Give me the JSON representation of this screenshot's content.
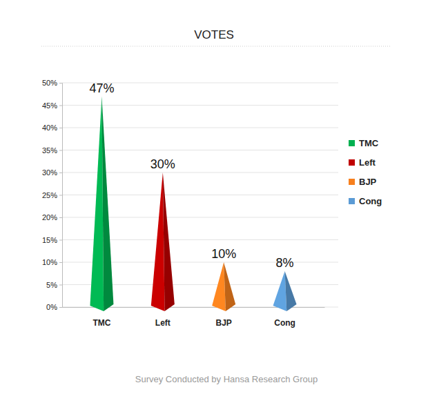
{
  "chart_data": {
    "type": "bar",
    "title": "VOTES",
    "categories": [
      "TMC",
      "Left",
      "BJP",
      "Cong"
    ],
    "values": [
      47,
      30,
      10,
      8
    ],
    "value_labels": [
      "47%",
      "30%",
      "10%",
      "8%"
    ],
    "colors": [
      "#00b050",
      "#c00000",
      "#f7801e",
      "#5b9bd5"
    ],
    "ylim": [
      0,
      50
    ],
    "yticks": [
      {
        "value": 0,
        "label": "0%"
      },
      {
        "value": 5,
        "label": "5%"
      },
      {
        "value": 10,
        "label": "10%"
      },
      {
        "value": 15,
        "label": "15%"
      },
      {
        "value": 20,
        "label": "20%"
      },
      {
        "value": 25,
        "label": "25%"
      },
      {
        "value": 30,
        "label": "30%"
      },
      {
        "value": 35,
        "label": "35%"
      },
      {
        "value": 40,
        "label": "40%"
      },
      {
        "value": 45,
        "label": "45%"
      },
      {
        "value": 50,
        "label": "50%"
      }
    ],
    "grid": true,
    "data_labels": true,
    "legend": "right",
    "marker": "pyramid",
    "annotations": [
      "Survey Conducted by Hansa Research Group"
    ]
  }
}
